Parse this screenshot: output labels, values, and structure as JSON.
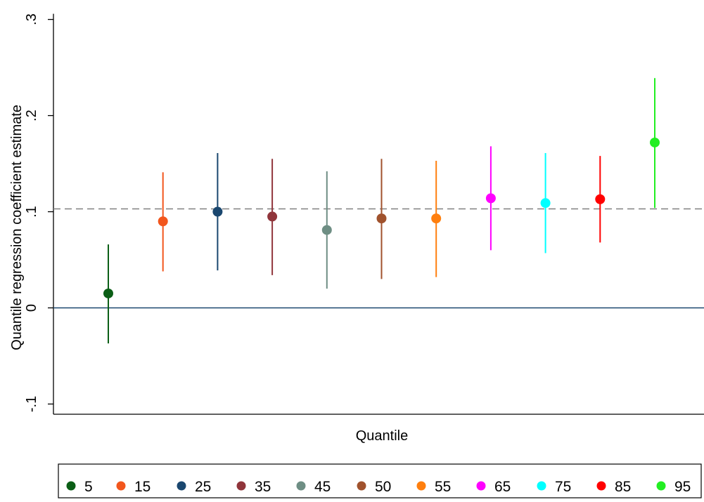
{
  "chart_data": {
    "type": "scatter",
    "subtype": "coefficient-plot-with-confidence-intervals",
    "title": "",
    "xlabel": "Quantile",
    "ylabel": "Quantile regression coefficient estimate",
    "ylim": [
      -0.1,
      0.3
    ],
    "yticks": [
      {
        "value": -0.1,
        "label": "-.1"
      },
      {
        "value": 0,
        "label": "0"
      },
      {
        "value": 0.1,
        "label": ".1"
      },
      {
        "value": 0.2,
        "label": ".2"
      },
      {
        "value": 0.3,
        "label": ".3"
      }
    ],
    "reference_lines": [
      {
        "value": 0,
        "style": "solid",
        "color": "#1a476f"
      },
      {
        "value": 0.103,
        "style": "dashed",
        "color": "#808080"
      }
    ],
    "legend_position": "bottom",
    "grid": false,
    "series": [
      {
        "name": "5",
        "estimate": 0.015,
        "ci_low": -0.037,
        "ci_high": 0.066,
        "color": "#0b5e16"
      },
      {
        "name": "15",
        "estimate": 0.09,
        "ci_low": 0.038,
        "ci_high": 0.141,
        "color": "#f2561d"
      },
      {
        "name": "25",
        "estimate": 0.1,
        "ci_low": 0.039,
        "ci_high": 0.161,
        "color": "#1a476f"
      },
      {
        "name": "35",
        "estimate": 0.095,
        "ci_low": 0.034,
        "ci_high": 0.155,
        "color": "#90353b"
      },
      {
        "name": "45",
        "estimate": 0.081,
        "ci_low": 0.02,
        "ci_high": 0.142,
        "color": "#6e8e84"
      },
      {
        "name": "50",
        "estimate": 0.093,
        "ci_low": 0.03,
        "ci_high": 0.155,
        "color": "#a0522d"
      },
      {
        "name": "55",
        "estimate": 0.093,
        "ci_low": 0.032,
        "ci_high": 0.153,
        "color": "#ff7f0e"
      },
      {
        "name": "65",
        "estimate": 0.114,
        "ci_low": 0.06,
        "ci_high": 0.168,
        "color": "#ff00ff"
      },
      {
        "name": "75",
        "estimate": 0.109,
        "ci_low": 0.057,
        "ci_high": 0.161,
        "color": "#00ffff"
      },
      {
        "name": "85",
        "estimate": 0.113,
        "ci_low": 0.068,
        "ci_high": 0.158,
        "color": "#ff0000"
      },
      {
        "name": "95",
        "estimate": 0.172,
        "ci_low": 0.104,
        "ci_high": 0.239,
        "color": "#22ee22"
      }
    ]
  }
}
